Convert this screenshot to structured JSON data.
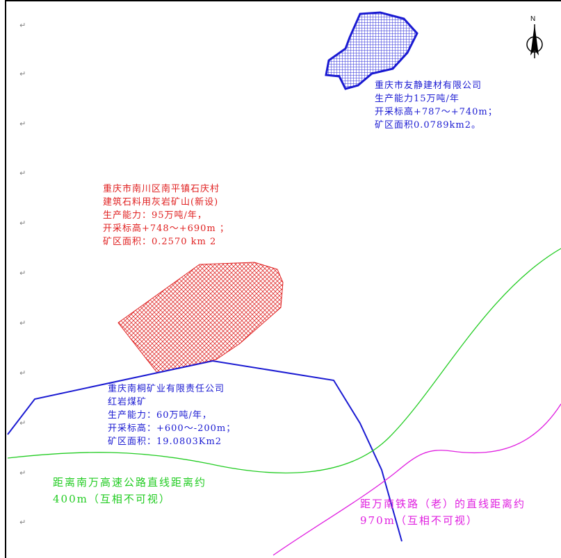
{
  "map": {
    "north_arrow_label": "N",
    "paragraph_mark": "↵",
    "paragraph_mark_count": 11
  },
  "mines": {
    "youjing": {
      "color": "#1a1ad2",
      "lines": [
        "重庆市友静建材有限公司",
        "生产能力15万吨/年",
        "开采标高+787～+740m；",
        "矿区面积0.0789km2。"
      ]
    },
    "nanping": {
      "color": "#e02020",
      "lines": [
        "重庆市南川区南平镇石庆村",
        "建筑石料用灰岩矿山(新设)",
        "生产能力：95万吨/年，",
        "开采标高+748～+690m ；",
        "矿区面积：0.2570 km 2"
      ]
    },
    "nantong": {
      "color": "#1a1ad2",
      "lines": [
        "重庆南桐矿业有限责任公司",
        "红岩煤矿",
        "生产能力：60万吨/年，",
        "开采标高：+600～-200m；",
        "矿区面积：19.0803Km2"
      ]
    }
  },
  "distances": {
    "highway": {
      "color": "#22cc22",
      "lines": [
        "距离南万高速公路直线距离约",
        "400m（互相不可视）"
      ]
    },
    "railway": {
      "color": "#e020e0",
      "lines": [
        "距万南铁路（老）的直线距离约",
        "970m（互相不可视）"
      ]
    }
  }
}
